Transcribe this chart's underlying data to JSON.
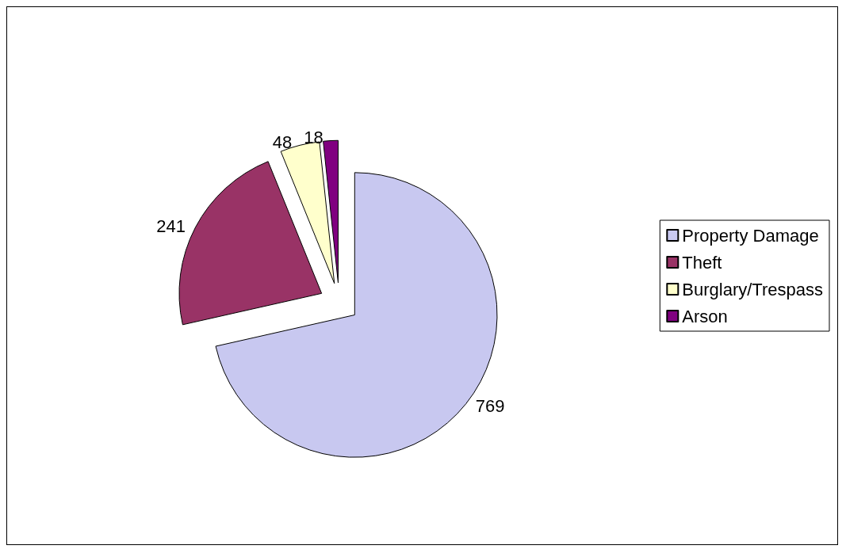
{
  "chart_data": {
    "type": "pie",
    "categories": [
      "Property Damage",
      "Theft",
      "Burglary/Trespass",
      "Arson"
    ],
    "values": [
      769,
      241,
      48,
      18
    ],
    "colors": [
      "#c8c8f0",
      "#993366",
      "#ffffcc",
      "#800080"
    ],
    "data_labels": true,
    "legend": "right"
  }
}
